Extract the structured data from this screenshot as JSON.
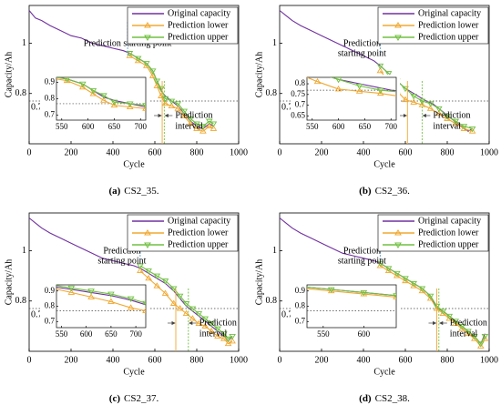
{
  "chart_data": [
    {
      "type": "line",
      "caption": {
        "label": "(a)",
        "text": "CS2_35."
      },
      "xlabel": "Cycle",
      "ylabel": "Capacity/Ah",
      "xlim": [
        0,
        1000
      ],
      "ylim": [
        0.6,
        1.15
      ],
      "xticks": [
        0,
        200,
        400,
        600,
        800,
        1000
      ],
      "yticks": [
        0.8,
        1
      ],
      "threshold": 0.77,
      "start_cycle": 470,
      "interval": [
        635,
        645
      ],
      "start_label": [
        "Prediction starting point"
      ],
      "interval_label": [
        "Prediction",
        "interval"
      ],
      "legend": "upper right",
      "inset": {
        "xlim": [
          540,
          710
        ],
        "ylim": [
          0.67,
          0.93
        ],
        "xticks": [
          550,
          600,
          650,
          700
        ],
        "yticks": [
          0.7,
          0.8,
          0.9
        ]
      },
      "series": [
        {
          "name": "Original capacity",
          "color": "#7030a0",
          "marker": "none",
          "x": [
            0,
            30,
            60,
            100,
            150,
            200,
            250,
            300,
            350,
            400,
            450,
            480,
            520,
            560,
            590,
            610,
            630,
            650,
            680,
            710,
            740,
            770,
            800,
            830,
            860,
            880
          ],
          "values": [
            1.13,
            1.1,
            1.09,
            1.07,
            1.05,
            1.03,
            1.02,
            1.0,
            0.99,
            0.98,
            0.97,
            0.96,
            0.94,
            0.92,
            0.89,
            0.85,
            0.81,
            0.79,
            0.77,
            0.75,
            0.72,
            0.69,
            0.67,
            0.66,
            0.68,
            0.67
          ]
        },
        {
          "name": "Prediction lower",
          "color": "#f0a830",
          "marker": "triangle-up",
          "x": [
            480,
            520,
            560,
            590,
            610,
            630,
            650,
            680,
            710,
            740,
            770,
            800,
            830,
            860,
            880
          ],
          "values": [
            0.95,
            0.93,
            0.91,
            0.87,
            0.83,
            0.79,
            0.76,
            0.75,
            0.74,
            0.71,
            0.68,
            0.66,
            0.65,
            0.67,
            0.66
          ]
        },
        {
          "name": "Prediction upper",
          "color": "#70c040",
          "marker": "triangle-down",
          "x": [
            480,
            520,
            560,
            590,
            610,
            630,
            650,
            680,
            710,
            740,
            770,
            800,
            830,
            860,
            880
          ],
          "values": [
            0.96,
            0.94,
            0.92,
            0.89,
            0.85,
            0.82,
            0.78,
            0.77,
            0.76,
            0.73,
            0.7,
            0.68,
            0.67,
            0.69,
            0.68
          ]
        }
      ]
    },
    {
      "type": "line",
      "caption": {
        "label": "(b)",
        "text": "CS2_36."
      },
      "xlabel": "Cycle",
      "ylabel": "Capacity/Ah",
      "xlim": [
        0,
        1000
      ],
      "ylim": [
        0.6,
        1.15
      ],
      "xticks": [
        0,
        200,
        400,
        600,
        800,
        1000
      ],
      "yticks": [
        0.8,
        1
      ],
      "threshold": 0.77,
      "start_cycle": 480,
      "interval": [
        610,
        680
      ],
      "start_label": [
        "Prediction",
        "starting point"
      ],
      "interval_label": [
        "Prediction",
        "interval"
      ],
      "legend": "upper right",
      "inset": {
        "xlim": [
          540,
          710
        ],
        "ylim": [
          0.63,
          0.83
        ],
        "xticks": [
          550,
          600,
          650,
          700
        ],
        "yticks": [
          0.65,
          0.7,
          0.75,
          0.8
        ]
      },
      "series": [
        {
          "name": "Original capacity",
          "color": "#7030a0",
          "marker": "none",
          "x": [
            0,
            30,
            60,
            100,
            150,
            200,
            250,
            300,
            350,
            400,
            450,
            480,
            520,
            560,
            600,
            640,
            680,
            700,
            730,
            760,
            790,
            820,
            850,
            880,
            900,
            920
          ],
          "values": [
            1.13,
            1.11,
            1.09,
            1.07,
            1.05,
            1.03,
            1.01,
            0.99,
            0.97,
            0.95,
            0.93,
            0.91,
            0.88,
            0.85,
            0.82,
            0.8,
            0.78,
            0.77,
            0.76,
            0.74,
            0.72,
            0.7,
            0.68,
            0.66,
            0.65,
            0.66
          ]
        },
        {
          "name": "Prediction lower",
          "color": "#f0a830",
          "marker": "triangle-up",
          "x": [
            480,
            520,
            560,
            600,
            640,
            680,
            720,
            760,
            800,
            840,
            880,
            920
          ],
          "values": [
            0.89,
            0.85,
            0.81,
            0.775,
            0.765,
            0.755,
            0.74,
            0.72,
            0.7,
            0.68,
            0.66,
            0.65
          ]
        },
        {
          "name": "Prediction upper",
          "color": "#70c040",
          "marker": "triangle-down",
          "x": [
            480,
            520,
            560,
            600,
            640,
            680,
            720,
            760,
            800,
            840,
            880,
            920
          ],
          "values": [
            0.91,
            0.88,
            0.85,
            0.82,
            0.79,
            0.77,
            0.76,
            0.74,
            0.71,
            0.69,
            0.67,
            0.66
          ]
        }
      ]
    },
    {
      "type": "line",
      "caption": {
        "label": "(c)",
        "text": "CS2_37."
      },
      "xlabel": "Cycle",
      "ylabel": "Capacity/Ah",
      "xlim": [
        0,
        1000
      ],
      "ylim": [
        0.6,
        1.15
      ],
      "xticks": [
        0,
        200,
        400,
        600,
        800,
        1000
      ],
      "yticks": [
        0.8,
        1
      ],
      "threshold": 0.77,
      "start_cycle": 530,
      "interval": [
        700,
        760
      ],
      "start_label": [
        "Prediction",
        "starting point"
      ],
      "interval_label": [
        "Prediction",
        "interval"
      ],
      "legend": "upper right",
      "inset": {
        "xlim": [
          540,
          720
        ],
        "ylim": [
          0.66,
          0.94
        ],
        "xticks": [
          550,
          600,
          650,
          700
        ],
        "yticks": [
          0.7,
          0.8,
          0.9
        ]
      },
      "series": [
        {
          "name": "Original capacity",
          "color": "#7030a0",
          "marker": "none",
          "x": [
            0,
            30,
            60,
            100,
            150,
            200,
            250,
            300,
            350,
            400,
            450,
            500,
            530,
            570,
            610,
            650,
            690,
            720,
            750,
            780,
            810,
            840,
            870,
            900,
            930,
            950,
            970
          ],
          "values": [
            1.13,
            1.11,
            1.09,
            1.07,
            1.05,
            1.03,
            1.01,
            0.99,
            0.97,
            0.96,
            0.95,
            0.94,
            0.93,
            0.91,
            0.89,
            0.87,
            0.84,
            0.81,
            0.78,
            0.76,
            0.74,
            0.72,
            0.7,
            0.68,
            0.66,
            0.64,
            0.66
          ]
        },
        {
          "name": "Prediction lower",
          "color": "#f0a830",
          "marker": "triangle-up",
          "x": [
            530,
            570,
            610,
            650,
            690,
            720,
            750,
            780,
            810,
            840,
            870,
            900,
            930,
            950,
            970
          ],
          "values": [
            0.92,
            0.89,
            0.86,
            0.83,
            0.79,
            0.77,
            0.75,
            0.73,
            0.71,
            0.7,
            0.68,
            0.66,
            0.65,
            0.63,
            0.64
          ]
        },
        {
          "name": "Prediction upper",
          "color": "#70c040",
          "marker": "triangle-down",
          "x": [
            530,
            570,
            610,
            650,
            690,
            720,
            750,
            780,
            810,
            840,
            870,
            900,
            930,
            950,
            970
          ],
          "values": [
            0.94,
            0.92,
            0.9,
            0.88,
            0.85,
            0.82,
            0.79,
            0.77,
            0.75,
            0.73,
            0.71,
            0.69,
            0.67,
            0.65,
            0.66
          ]
        }
      ]
    },
    {
      "type": "line",
      "caption": {
        "label": "(d)",
        "text": "CS2_38."
      },
      "xlabel": "Cycle",
      "ylabel": "Capacity/Ah",
      "xlim": [
        0,
        1000
      ],
      "ylim": [
        0.6,
        1.15
      ],
      "xticks": [
        0,
        200,
        400,
        600,
        800,
        1000
      ],
      "yticks": [
        0.8,
        1
      ],
      "threshold": 0.77,
      "start_cycle": 480,
      "interval": [
        750,
        760
      ],
      "start_label": [
        "Prediction",
        "starting point"
      ],
      "interval_label": [
        "Prediction",
        "interval"
      ],
      "legend": "upper right",
      "inset": {
        "xlim": [
          530,
          640
        ],
        "ylim": [
          0.66,
          0.94
        ],
        "xticks": [
          550,
          600
        ],
        "yticks": [
          0.7,
          0.8,
          0.9
        ]
      },
      "series": [
        {
          "name": "Original capacity",
          "color": "#7030a0",
          "marker": "none",
          "x": [
            0,
            30,
            60,
            100,
            150,
            200,
            250,
            300,
            350,
            400,
            450,
            480,
            520,
            560,
            600,
            640,
            680,
            720,
            750,
            780,
            810,
            840,
            870,
            900,
            930,
            960,
            980
          ],
          "values": [
            1.13,
            1.11,
            1.09,
            1.07,
            1.05,
            1.03,
            1.01,
            0.99,
            0.98,
            0.97,
            0.96,
            0.95,
            0.93,
            0.91,
            0.89,
            0.87,
            0.85,
            0.82,
            0.77,
            0.76,
            0.74,
            0.72,
            0.7,
            0.68,
            0.66,
            0.63,
            0.67
          ]
        },
        {
          "name": "Prediction lower",
          "color": "#f0a830",
          "marker": "triangle-up",
          "x": [
            480,
            520,
            560,
            600,
            640,
            680,
            720,
            750,
            780,
            810,
            840,
            870,
            900,
            930,
            960,
            980
          ],
          "values": [
            0.94,
            0.92,
            0.9,
            0.88,
            0.86,
            0.84,
            0.81,
            0.77,
            0.75,
            0.73,
            0.71,
            0.69,
            0.67,
            0.65,
            0.62,
            0.65
          ]
        },
        {
          "name": "Prediction upper",
          "color": "#70c040",
          "marker": "triangle-down",
          "x": [
            480,
            520,
            560,
            600,
            640,
            680,
            720,
            750,
            780,
            810,
            840,
            870,
            900,
            930,
            960,
            980
          ],
          "values": [
            0.95,
            0.93,
            0.91,
            0.89,
            0.87,
            0.85,
            0.82,
            0.78,
            0.76,
            0.74,
            0.72,
            0.7,
            0.68,
            0.66,
            0.63,
            0.66
          ]
        }
      ]
    }
  ]
}
